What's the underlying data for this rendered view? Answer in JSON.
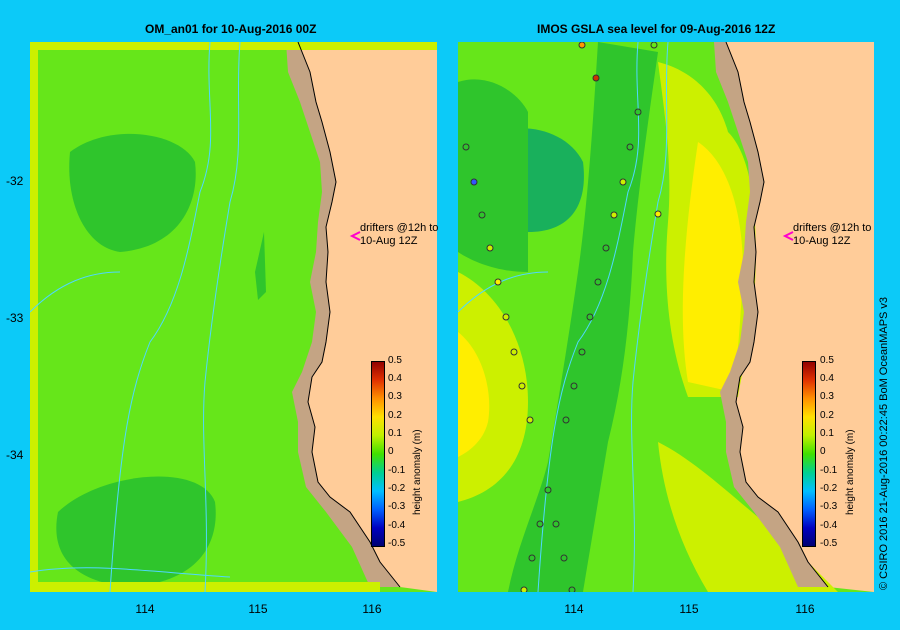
{
  "left_panel": {
    "title": "OM_an01  for 10-Aug-2016 00Z",
    "drifters_line1": "drifters @12h to",
    "drifters_line2": "10-Aug 12Z"
  },
  "right_panel": {
    "title": "IMOS  GSLA sea level   for 09-Aug-2016 12Z",
    "drifters_line1": "drifters @12h to",
    "drifters_line2": "10-Aug 12Z"
  },
  "lat_labels": [
    "-32",
    "-33",
    "-34"
  ],
  "lon_labels": [
    "114",
    "115",
    "116"
  ],
  "colorbar": {
    "title": "height anomaly (m)",
    "ticks": [
      "0.5",
      "0.4",
      "0.3",
      "0.2",
      "0.1",
      "0",
      "-0.1",
      "-0.2",
      "-0.3",
      "-0.4",
      "-0.5"
    ]
  },
  "credit": "© CSIRO 2016   21-Aug-2016 00:22:45 BoM OceanMAPS v3",
  "colors": {
    "background": "#0ccaf8",
    "land": "#ffcc99",
    "shelf": "#c4a484",
    "ocean_zero": "#66e61a",
    "ocean_neg": "#2fc52c",
    "ocean_neg2": "#19b05c",
    "ocean_pos": "#ccf000",
    "ocean_pos2": "#ffee00",
    "bathy_contour": "#4fd8ff",
    "drifter_marker": "#ff00cc"
  }
}
